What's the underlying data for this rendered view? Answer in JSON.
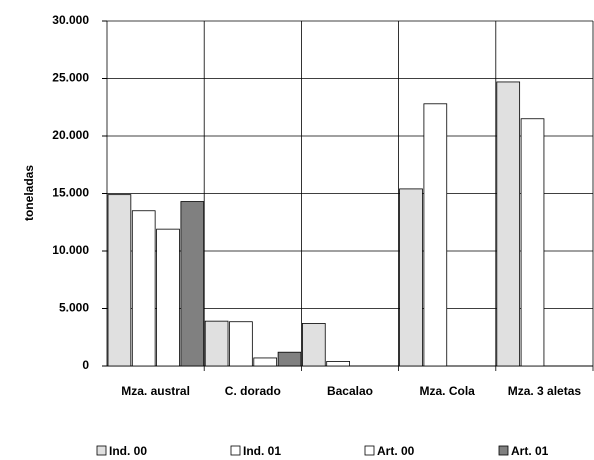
{
  "chart_data": {
    "type": "bar",
    "y_label": "toneladas",
    "categories": [
      "Mza. austral",
      "C. dorado",
      "Bacalao",
      "Mza. Cola",
      "Mza. 3 aletas"
    ],
    "series": [
      {
        "name": "Ind. 00",
        "color": "#e0e0e0",
        "values": [
          14900,
          3900,
          3700,
          15400,
          24700
        ]
      },
      {
        "name": "Ind. 01",
        "color": "#ffffff",
        "values": [
          13500,
          3850,
          400,
          22800,
          21500
        ]
      },
      {
        "name": "Art. 00",
        "color": "#ffffff",
        "values": [
          11900,
          700,
          0,
          0,
          0
        ]
      },
      {
        "name": "Art. 01",
        "color": "#808080",
        "values": [
          14300,
          1200,
          0,
          0,
          0
        ]
      }
    ],
    "ylim": [
      0,
      30000
    ],
    "yticks": [
      0,
      {
        "value": 5000,
        "label": "5.000"
      },
      {
        "value": 10000,
        "label": "10.000"
      },
      {
        "value": 15000,
        "label": "15.000"
      },
      {
        "value": 20000,
        "label": "20.000"
      },
      {
        "value": 25000,
        "label": "25.000"
      },
      {
        "value": 30000,
        "label": "30.000"
      }
    ],
    "grid": true
  }
}
